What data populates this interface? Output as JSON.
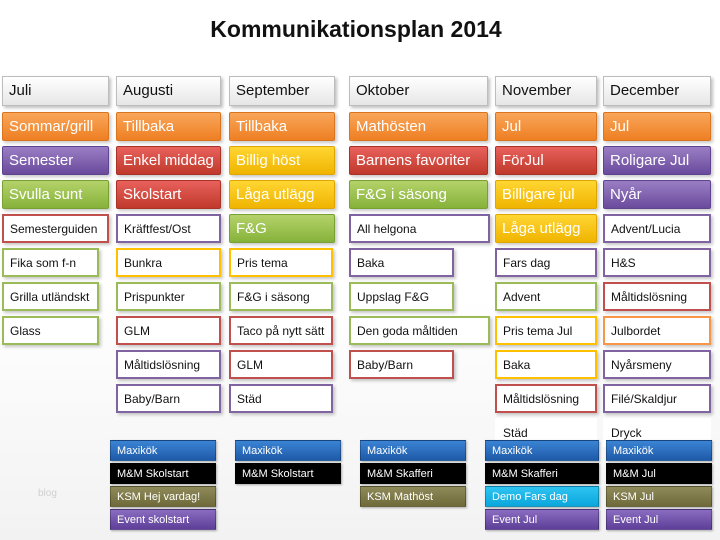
{
  "title": "Kommunikationsplan  2014",
  "watermark": "blog",
  "colors": {
    "orange": "#ee7f23",
    "red": "#c0392b",
    "green": "#86b23a",
    "purple": "#6a4a9c",
    "yellow": "#f0b400",
    "tag_blue": "#1e5aa8",
    "tag_black": "#000000",
    "tag_olive": "#6f6a3a",
    "tag_purple": "#5e3f99",
    "tag_cyan": "#0aa6dc"
  },
  "months": [
    {
      "name": "Juli",
      "rows": [
        {
          "text": "Sommar/grill",
          "style": "orange",
          "kind": "fill"
        },
        {
          "text": "Semester",
          "style": "purple",
          "kind": "fill"
        },
        {
          "text": "Svulla sunt",
          "style": "green",
          "kind": "fill"
        },
        {
          "text": "Semesterguiden",
          "style": "red",
          "kind": "outline"
        },
        {
          "text": "Fika som f-n",
          "style": "green",
          "kind": "outline"
        },
        {
          "text": "Grilla utländskt",
          "style": "green",
          "kind": "outline"
        },
        {
          "text": "Glass",
          "style": "green",
          "kind": "outline"
        }
      ],
      "tags": []
    },
    {
      "name": "Augusti",
      "rows": [
        {
          "text": "Tillbaka",
          "style": "orange",
          "kind": "fill"
        },
        {
          "text": "Enkel middag",
          "style": "red",
          "kind": "fill"
        },
        {
          "text": "Skolstart",
          "style": "red",
          "kind": "fill"
        },
        {
          "text": "Kräftfest/Ost",
          "style": "purple",
          "kind": "outline"
        },
        {
          "text": "Bunkra",
          "style": "yellow",
          "kind": "outline"
        },
        {
          "text": "Prispunkter",
          "style": "green",
          "kind": "outline"
        },
        {
          "text": "GLM",
          "style": "red",
          "kind": "outline"
        },
        {
          "text": "Måltidslösning",
          "style": "purple",
          "kind": "outline"
        },
        {
          "text": "Baby/Barn",
          "style": "purple",
          "kind": "outline"
        }
      ],
      "tags": [
        {
          "text": "Maxikök",
          "style": "blue"
        },
        {
          "text": "M&M Skolstart",
          "style": "black"
        },
        {
          "text": "KSM Hej vardag!",
          "style": "olive"
        },
        {
          "text": "Event skolstart",
          "style": "purple"
        }
      ]
    },
    {
      "name": "September",
      "rows": [
        {
          "text": "Tillbaka",
          "style": "orange",
          "kind": "fill"
        },
        {
          "text": "Billig höst",
          "style": "yellow",
          "kind": "fill"
        },
        {
          "text": "Låga utlägg",
          "style": "yellow",
          "kind": "fill"
        },
        {
          "text": "F&G",
          "style": "green",
          "kind": "fill"
        },
        {
          "text": "Pris tema",
          "style": "yellow",
          "kind": "outline"
        },
        {
          "text": "F&G i säsong",
          "style": "green",
          "kind": "outline"
        },
        {
          "text": "Taco på nytt sätt",
          "style": "red",
          "kind": "outline"
        },
        {
          "text": "GLM",
          "style": "red",
          "kind": "outline"
        },
        {
          "text": "Städ",
          "style": "purple",
          "kind": "outline"
        }
      ],
      "tags": [
        {
          "text": "Maxikök",
          "style": "blue"
        },
        {
          "text": "M&M Skolstart",
          "style": "black"
        }
      ]
    },
    {
      "name": "Oktober",
      "rows": [
        {
          "text": "Mathösten",
          "style": "orange",
          "kind": "fill"
        },
        {
          "text": "Barnens favoriter",
          "style": "red",
          "kind": "fill"
        },
        {
          "text": "F&G i säsong",
          "style": "green",
          "kind": "fill"
        },
        {
          "text": "All helgona",
          "style": "purple",
          "kind": "outline"
        },
        {
          "text": "Baka",
          "style": "purple",
          "kind": "outline"
        },
        {
          "text": "Uppslag F&G",
          "style": "green",
          "kind": "outline"
        },
        {
          "text": "Den goda måltiden",
          "style": "green",
          "kind": "outline"
        },
        {
          "text": "Baby/Barn",
          "style": "red",
          "kind": "outline"
        }
      ],
      "tags": [
        {
          "text": "Maxikök",
          "style": "blue"
        },
        {
          "text": "M&M Skafferi",
          "style": "black"
        },
        {
          "text": "KSM Mathöst",
          "style": "olive"
        }
      ]
    },
    {
      "name": "November",
      "rows": [
        {
          "text": "Jul",
          "style": "orange",
          "kind": "fill"
        },
        {
          "text": "FörJul",
          "style": "red",
          "kind": "fill"
        },
        {
          "text": "Billigare jul",
          "style": "yellow",
          "kind": "fill"
        },
        {
          "text": "Låga utlägg",
          "style": "yellow",
          "kind": "fill"
        },
        {
          "text": "Fars dag",
          "style": "purple",
          "kind": "outline"
        },
        {
          "text": "Advent",
          "style": "green",
          "kind": "outline"
        },
        {
          "text": "Pris tema Jul",
          "style": "yellow",
          "kind": "outline"
        },
        {
          "text": "Baka",
          "style": "yellow",
          "kind": "outline"
        },
        {
          "text": "Måltidslösning",
          "style": "red",
          "kind": "outline"
        },
        {
          "text": "Städ",
          "style": "none",
          "kind": "outline"
        }
      ],
      "tags": [
        {
          "text": "Maxikök",
          "style": "blue"
        },
        {
          "text": "M&M Skafferi",
          "style": "black"
        },
        {
          "text": "Demo Fars dag",
          "style": "cyan"
        },
        {
          "text": "Event Jul",
          "style": "purple"
        }
      ]
    },
    {
      "name": "December",
      "rows": [
        {
          "text": "Jul",
          "style": "orange",
          "kind": "fill"
        },
        {
          "text": "Roligare Jul",
          "style": "purple",
          "kind": "fill"
        },
        {
          "text": "Nyår",
          "style": "purple",
          "kind": "fill"
        },
        {
          "text": "Advent/Lucia",
          "style": "purple",
          "kind": "outline"
        },
        {
          "text": "H&S",
          "style": "purple",
          "kind": "outline"
        },
        {
          "text": "Måltidslösning",
          "style": "red",
          "kind": "outline"
        },
        {
          "text": "Julbordet",
          "style": "orange",
          "kind": "outline"
        },
        {
          "text": "Nyårsmeny",
          "style": "purple",
          "kind": "outline"
        },
        {
          "text": "Filé/Skaldjur",
          "style": "purple",
          "kind": "outline"
        },
        {
          "text": "Dryck",
          "style": "none",
          "kind": "outline"
        }
      ],
      "tags": [
        {
          "text": "Maxikök",
          "style": "blue"
        },
        {
          "text": "M&M Jul",
          "style": "black"
        },
        {
          "text": "KSM Jul",
          "style": "olive"
        },
        {
          "text": "Event Jul",
          "style": "purple"
        }
      ]
    }
  ]
}
